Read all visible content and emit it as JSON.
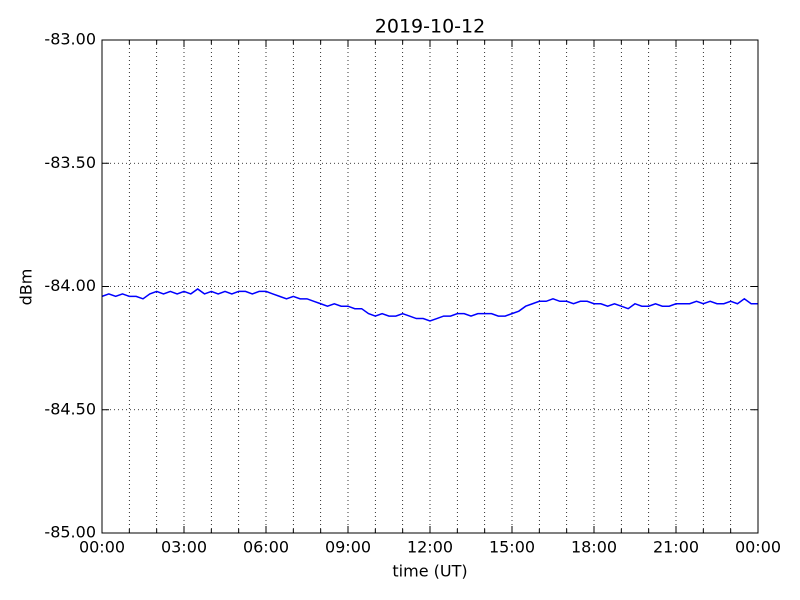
{
  "chart_data": {
    "type": "line",
    "title": "2019-10-12",
    "xlabel": "time (UT)",
    "ylabel": "dBm",
    "x": [
      0,
      0.25,
      0.5,
      0.75,
      1,
      1.25,
      1.5,
      1.75,
      2,
      2.25,
      2.5,
      2.75,
      3,
      3.25,
      3.5,
      3.75,
      4,
      4.25,
      4.5,
      4.75,
      5,
      5.25,
      5.5,
      5.75,
      6,
      6.25,
      6.5,
      6.75,
      7,
      7.25,
      7.5,
      7.75,
      8,
      8.25,
      8.5,
      8.75,
      9,
      9.25,
      9.5,
      9.75,
      10,
      10.25,
      10.5,
      10.75,
      11,
      11.25,
      11.5,
      11.75,
      12,
      12.25,
      12.5,
      12.75,
      13,
      13.25,
      13.5,
      13.75,
      14,
      14.25,
      14.5,
      14.75,
      15,
      15.25,
      15.5,
      15.75,
      16,
      16.25,
      16.5,
      16.75,
      17,
      17.25,
      17.5,
      17.75,
      18,
      18.25,
      18.5,
      18.75,
      19,
      19.25,
      19.5,
      19.75,
      20,
      20.25,
      20.5,
      20.75,
      21,
      21.25,
      21.5,
      21.75,
      22,
      22.25,
      22.5,
      22.75,
      23,
      23.25,
      23.5,
      23.75,
      24
    ],
    "series": [
      {
        "color": "#0000ff",
        "values": [
          -84.04,
          -84.03,
          -84.04,
          -84.03,
          -84.04,
          -84.04,
          -84.05,
          -84.03,
          -84.02,
          -84.03,
          -84.02,
          -84.03,
          -84.02,
          -84.03,
          -84.01,
          -84.03,
          -84.02,
          -84.03,
          -84.02,
          -84.03,
          -84.02,
          -84.02,
          -84.03,
          -84.02,
          -84.02,
          -84.03,
          -84.04,
          -84.05,
          -84.04,
          -84.05,
          -84.05,
          -84.06,
          -84.07,
          -84.08,
          -84.07,
          -84.08,
          -84.08,
          -84.09,
          -84.09,
          -84.11,
          -84.12,
          -84.11,
          -84.12,
          -84.12,
          -84.11,
          -84.12,
          -84.13,
          -84.13,
          -84.14,
          -84.13,
          -84.12,
          -84.12,
          -84.11,
          -84.11,
          -84.12,
          -84.11,
          -84.11,
          -84.11,
          -84.12,
          -84.12,
          -84.11,
          -84.1,
          -84.08,
          -84.07,
          -84.06,
          -84.06,
          -84.05,
          -84.06,
          -84.06,
          -84.07,
          -84.06,
          -84.06,
          -84.07,
          -84.07,
          -84.08,
          -84.07,
          -84.08,
          -84.09,
          -84.07,
          -84.08,
          -84.08,
          -84.07,
          -84.08,
          -84.08,
          -84.07,
          -84.07,
          -84.07,
          -84.06,
          -84.07,
          -84.06,
          -84.07,
          -84.07,
          -84.06,
          -84.07,
          -84.05,
          -84.07,
          -84.07
        ]
      }
    ],
    "xlim": [
      0,
      24
    ],
    "xticks": [
      {
        "value": 0,
        "label": "00:00"
      },
      {
        "value": 3,
        "label": "03:00"
      },
      {
        "value": 6,
        "label": "06:00"
      },
      {
        "value": 9,
        "label": "09:00"
      },
      {
        "value": 12,
        "label": "12:00"
      },
      {
        "value": 15,
        "label": "15:00"
      },
      {
        "value": 18,
        "label": "18:00"
      },
      {
        "value": 21,
        "label": "21:00"
      },
      {
        "value": 24,
        "label": "00:00"
      }
    ],
    "xminorticks": [
      1,
      2,
      4,
      5,
      7,
      8,
      10,
      11,
      13,
      14,
      16,
      17,
      19,
      20,
      22,
      23
    ],
    "ylim": [
      -85,
      -83
    ],
    "yticks": [
      {
        "value": -85,
        "label": "-85.00"
      },
      {
        "value": -84.5,
        "label": "-84.50"
      },
      {
        "value": -84,
        "label": "-84.00"
      },
      {
        "value": -83.5,
        "label": "-83.50"
      },
      {
        "value": -83,
        "label": "-83.00"
      }
    ],
    "grid": true
  }
}
